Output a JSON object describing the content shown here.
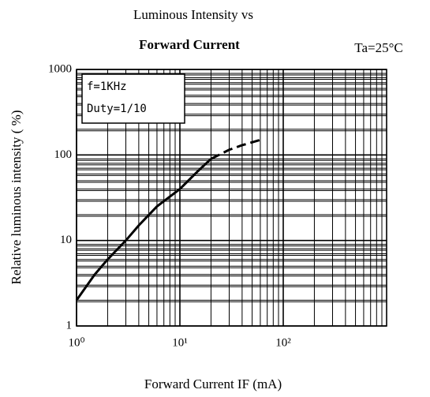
{
  "chart_data": {
    "type": "line",
    "title": [
      "Luminous Intensity vs",
      "Forward Current"
    ],
    "annotation": "Ta=25°C",
    "notes": [
      "f=1KHz",
      "Duty=1/10"
    ],
    "xlabel": "Forward Current  IF (mA)",
    "ylabel": "Relative luminous intensity ( %)",
    "x_log": true,
    "y_log": true,
    "grid": true,
    "xlim": [
      1,
      1000
    ],
    "ylim": [
      1,
      1000
    ],
    "xticks": [
      {
        "value": 1,
        "label": "10⁰"
      },
      {
        "value": 10,
        "label": "10¹"
      },
      {
        "value": 100,
        "label": "10²"
      }
    ],
    "yticks": [
      1,
      10,
      100,
      1000
    ],
    "series": [
      {
        "color": "#000000",
        "dash": false,
        "x": [
          1,
          1.5,
          2,
          3,
          4,
          6,
          10,
          15,
          20
        ],
        "values": [
          2,
          4,
          6,
          10,
          15,
          25,
          40,
          65,
          90
        ]
      },
      {
        "color": "#000000",
        "dash": true,
        "x": [
          20,
          30,
          40,
          60
        ],
        "values": [
          90,
          115,
          130,
          150
        ]
      }
    ]
  }
}
